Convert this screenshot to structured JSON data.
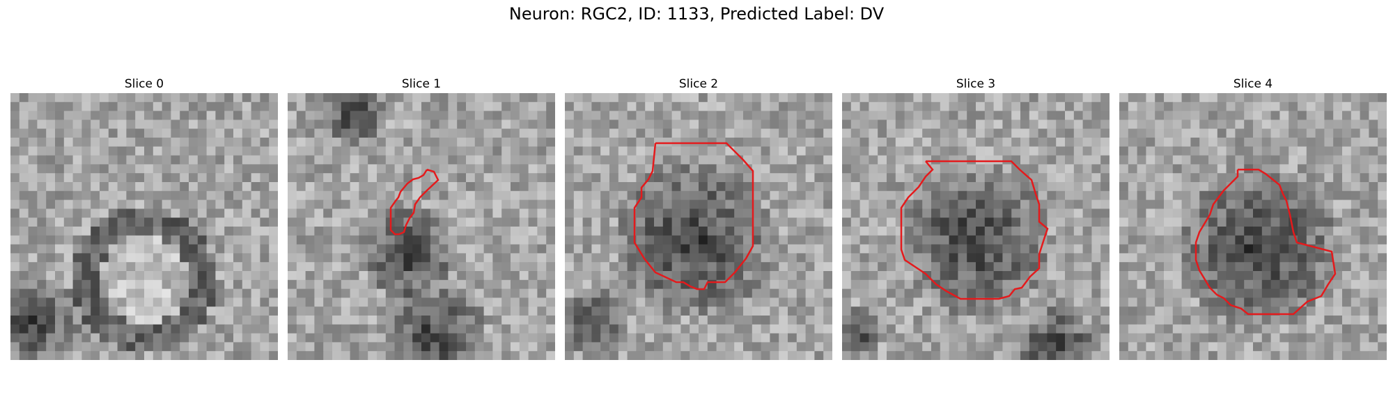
{
  "figure": {
    "title": "Neuron: RGC2, ID: 1133, Predicted Label: DV"
  },
  "panels": [
    {
      "title": "Slice 0",
      "image": "grayscale-microscopy-slice",
      "contour": false,
      "contour_color": "#e41a1c"
    },
    {
      "title": "Slice 1",
      "image": "grayscale-microscopy-slice",
      "contour": true,
      "contour_color": "#e41a1c"
    },
    {
      "title": "Slice 2",
      "image": "grayscale-microscopy-slice",
      "contour": true,
      "contour_color": "#e41a1c"
    },
    {
      "title": "Slice 3",
      "image": "grayscale-microscopy-slice",
      "contour": true,
      "contour_color": "#e41a1c"
    },
    {
      "title": "Slice 4",
      "image": "grayscale-microscopy-slice",
      "contour": true,
      "contour_color": "#e41a1c"
    }
  ]
}
